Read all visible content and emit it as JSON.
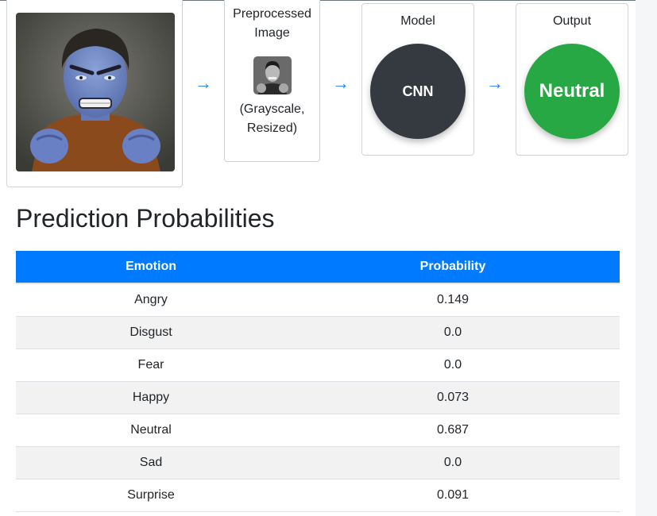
{
  "pipeline": {
    "preprocessed": {
      "title": "Preprocessed Image",
      "note": "(Grayscale, Resized)"
    },
    "model": {
      "title": "Model",
      "label": "CNN"
    },
    "output": {
      "title": "Output",
      "label": "Neutral"
    },
    "arrow_glyph": "→"
  },
  "results": {
    "title": "Prediction Probabilities",
    "columns": [
      "Emotion",
      "Probability"
    ],
    "rows": [
      {
        "emotion": "Angry",
        "probability": "0.149"
      },
      {
        "emotion": "Disgust",
        "probability": "0.0"
      },
      {
        "emotion": "Fear",
        "probability": "0.0"
      },
      {
        "emotion": "Happy",
        "probability": "0.073"
      },
      {
        "emotion": "Neutral",
        "probability": "0.687"
      },
      {
        "emotion": "Sad",
        "probability": "0.0"
      },
      {
        "emotion": "Surprise",
        "probability": "0.091"
      }
    ]
  },
  "colors": {
    "header_blue": "#007bff",
    "model_dark": "#343a40",
    "output_green": "#28a745",
    "arrow_blue": "#1f7ef0"
  }
}
